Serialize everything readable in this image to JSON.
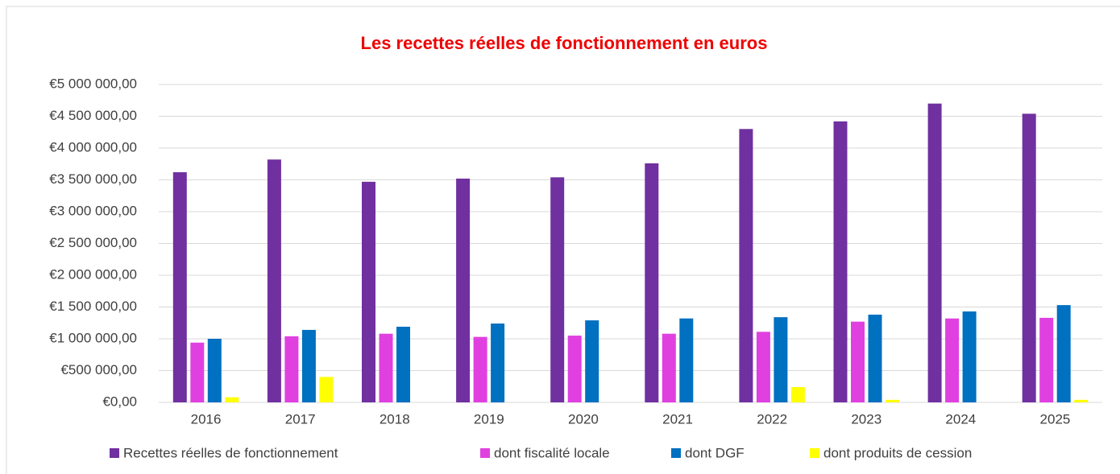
{
  "chart_data": {
    "type": "bar",
    "title": "Les recettes réelles de fonctionnement en euros",
    "categories": [
      "2016",
      "2017",
      "2018",
      "2019",
      "2020",
      "2021",
      "2022",
      "2023",
      "2024",
      "2025"
    ],
    "series": [
      {
        "name": "Recettes réelles de fonctionnement",
        "color": "#7030a0",
        "values": [
          3620000,
          3820000,
          3470000,
          3520000,
          3540000,
          3760000,
          4300000,
          4420000,
          4700000,
          4540000
        ]
      },
      {
        "name": "dont fiscalité locale",
        "color": "#e040e0",
        "values": [
          940000,
          1040000,
          1080000,
          1030000,
          1050000,
          1080000,
          1110000,
          1270000,
          1320000,
          1330000
        ]
      },
      {
        "name": "dont DGF",
        "color": "#0070c0",
        "values": [
          1000000,
          1140000,
          1190000,
          1240000,
          1290000,
          1320000,
          1340000,
          1380000,
          1430000,
          1530000
        ]
      },
      {
        "name": "dont produits de cession",
        "color": "#ffff00",
        "values": [
          80000,
          400000,
          0,
          0,
          0,
          0,
          240000,
          40000,
          0,
          40000
        ]
      }
    ],
    "ylim": [
      0,
      5000000
    ],
    "yticks": [
      {
        "value": 0,
        "label": "€0,00"
      },
      {
        "value": 500000,
        "label": "€500 000,00"
      },
      {
        "value": 1000000,
        "label": "€1 000 000,00"
      },
      {
        "value": 1500000,
        "label": "€1 500 000,00"
      },
      {
        "value": 2000000,
        "label": "€2 000 000,00"
      },
      {
        "value": 2500000,
        "label": "€2 500 000,00"
      },
      {
        "value": 3000000,
        "label": "€3 000 000,00"
      },
      {
        "value": 3500000,
        "label": "€3 500 000,00"
      },
      {
        "value": 4000000,
        "label": "€4 000 000,00"
      },
      {
        "value": 4500000,
        "label": "€4 500 000,00"
      },
      {
        "value": 5000000,
        "label": "€5 000 000,00"
      }
    ],
    "grid": true,
    "legend": "bottom"
  }
}
